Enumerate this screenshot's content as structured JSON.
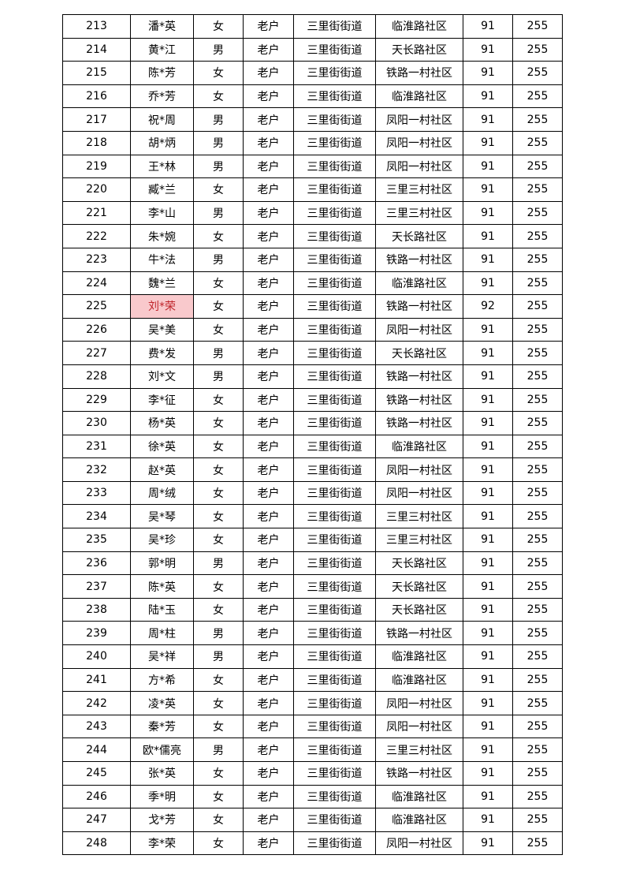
{
  "table": {
    "rows": [
      [
        213,
        "潘*英",
        "女",
        "老户",
        "三里街街道",
        "临淮路社区",
        91,
        255
      ],
      [
        214,
        "黄*江",
        "男",
        "老户",
        "三里街街道",
        "天长路社区",
        91,
        255
      ],
      [
        215,
        "陈*芳",
        "女",
        "老户",
        "三里街街道",
        "铁路一村社区",
        91,
        255
      ],
      [
        216,
        "乔*芳",
        "女",
        "老户",
        "三里街街道",
        "临淮路社区",
        91,
        255
      ],
      [
        217,
        "祝*周",
        "男",
        "老户",
        "三里街街道",
        "凤阳一村社区",
        91,
        255
      ],
      [
        218,
        "胡*炳",
        "男",
        "老户",
        "三里街街道",
        "凤阳一村社区",
        91,
        255
      ],
      [
        219,
        "王*林",
        "男",
        "老户",
        "三里街街道",
        "凤阳一村社区",
        91,
        255
      ],
      [
        220,
        "臧*兰",
        "女",
        "老户",
        "三里街街道",
        "三里三村社区",
        91,
        255
      ],
      [
        221,
        "李*山",
        "男",
        "老户",
        "三里街街道",
        "三里三村社区",
        91,
        255
      ],
      [
        222,
        "朱*婉",
        "女",
        "老户",
        "三里街街道",
        "天长路社区",
        91,
        255
      ],
      [
        223,
        "牛*法",
        "男",
        "老户",
        "三里街街道",
        "铁路一村社区",
        91,
        255
      ],
      [
        224,
        "魏*兰",
        "女",
        "老户",
        "三里街街道",
        "临淮路社区",
        91,
        255
      ],
      [
        225,
        "刘*荣",
        "女",
        "老户",
        "三里街街道",
        "铁路一村社区",
        92,
        255
      ],
      [
        226,
        "吴*美",
        "女",
        "老户",
        "三里街街道",
        "凤阳一村社区",
        91,
        255
      ],
      [
        227,
        "费*发",
        "男",
        "老户",
        "三里街街道",
        "天长路社区",
        91,
        255
      ],
      [
        228,
        "刘*文",
        "男",
        "老户",
        "三里街街道",
        "铁路一村社区",
        91,
        255
      ],
      [
        229,
        "李*征",
        "女",
        "老户",
        "三里街街道",
        "铁路一村社区",
        91,
        255
      ],
      [
        230,
        "杨*英",
        "女",
        "老户",
        "三里街街道",
        "铁路一村社区",
        91,
        255
      ],
      [
        231,
        "徐*英",
        "女",
        "老户",
        "三里街街道",
        "临淮路社区",
        91,
        255
      ],
      [
        232,
        "赵*英",
        "女",
        "老户",
        "三里街街道",
        "凤阳一村社区",
        91,
        255
      ],
      [
        233,
        "周*绒",
        "女",
        "老户",
        "三里街街道",
        "凤阳一村社区",
        91,
        255
      ],
      [
        234,
        "吴*琴",
        "女",
        "老户",
        "三里街街道",
        "三里三村社区",
        91,
        255
      ],
      [
        235,
        "吴*珍",
        "女",
        "老户",
        "三里街街道",
        "三里三村社区",
        91,
        255
      ],
      [
        236,
        "郭*明",
        "男",
        "老户",
        "三里街街道",
        "天长路社区",
        91,
        255
      ],
      [
        237,
        "陈*英",
        "女",
        "老户",
        "三里街街道",
        "天长路社区",
        91,
        255
      ],
      [
        238,
        "陆*玉",
        "女",
        "老户",
        "三里街街道",
        "天长路社区",
        91,
        255
      ],
      [
        239,
        "周*柱",
        "男",
        "老户",
        "三里街街道",
        "铁路一村社区",
        91,
        255
      ],
      [
        240,
        "吴*祥",
        "男",
        "老户",
        "三里街街道",
        "临淮路社区",
        91,
        255
      ],
      [
        241,
        "方*希",
        "女",
        "老户",
        "三里街街道",
        "临淮路社区",
        91,
        255
      ],
      [
        242,
        "凌*英",
        "女",
        "老户",
        "三里街街道",
        "凤阳一村社区",
        91,
        255
      ],
      [
        243,
        "秦*芳",
        "女",
        "老户",
        "三里街街道",
        "凤阳一村社区",
        91,
        255
      ],
      [
        244,
        "欧*儒亮",
        "男",
        "老户",
        "三里街街道",
        "三里三村社区",
        91,
        255
      ],
      [
        245,
        "张*英",
        "女",
        "老户",
        "三里街街道",
        "铁路一村社区",
        91,
        255
      ],
      [
        246,
        "季*明",
        "女",
        "老户",
        "三里街街道",
        "临淮路社区",
        91,
        255
      ],
      [
        247,
        "戈*芳",
        "女",
        "老户",
        "三里街街道",
        "临淮路社区",
        91,
        255
      ],
      [
        248,
        "李*荣",
        "女",
        "老户",
        "三里街街道",
        "凤阳一村社区",
        91,
        255
      ]
    ]
  }
}
